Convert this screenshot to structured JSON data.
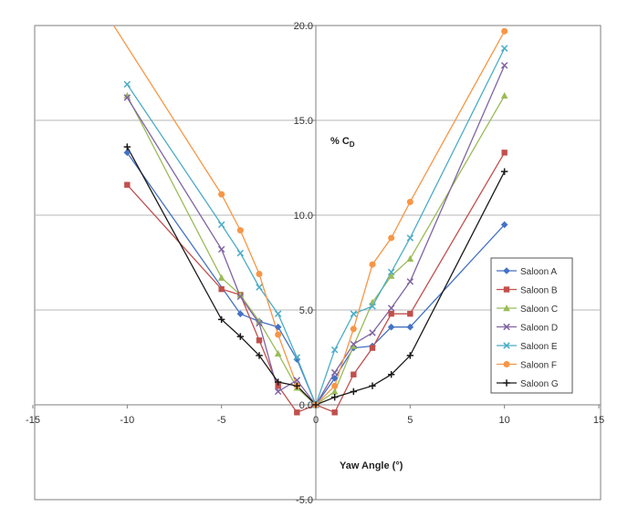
{
  "chart_data": {
    "type": "line",
    "title": "",
    "xlabel": "Yaw Angle (°)",
    "ylabel_prefix": "% C",
    "ylabel_sub": "D",
    "xlim": [
      -15,
      15
    ],
    "ylim": [
      -5,
      20
    ],
    "xticks": [
      -15,
      -10,
      -5,
      0,
      5,
      10,
      15
    ],
    "xtick_labels": [
      "-15",
      "-10",
      "-5",
      "0",
      "5",
      "10",
      "15"
    ],
    "yticks": [
      -5,
      0,
      5,
      10,
      15,
      20
    ],
    "ytick_labels": [
      "-5.0",
      "0.0",
      "5.0",
      "10.0",
      "15.0",
      "20.0"
    ],
    "grid": "horizontal",
    "legend_position": "right",
    "series": [
      {
        "name": "Saloon A",
        "color": "#4472c4",
        "marker": "diamond",
        "x": [
          -10,
          -4,
          -3,
          -2,
          -1,
          0,
          1,
          2,
          3,
          4,
          5,
          10
        ],
        "y": [
          13.3,
          4.8,
          4.4,
          4.1,
          2.4,
          0.0,
          1.4,
          3.0,
          3.1,
          4.1,
          4.1,
          9.5
        ]
      },
      {
        "name": "Saloon B",
        "color": "#c0504d",
        "marker": "square",
        "x": [
          -10,
          -5,
          -4,
          -3,
          -2,
          -1,
          0,
          1,
          2,
          3,
          4,
          5,
          10
        ],
        "y": [
          11.6,
          6.1,
          5.8,
          3.4,
          1.0,
          -0.4,
          0.0,
          -0.4,
          1.6,
          3.0,
          4.8,
          4.8,
          13.3
        ]
      },
      {
        "name": "Saloon C",
        "color": "#9bbb59",
        "marker": "triangle",
        "x": [
          -10,
          -5,
          -4,
          -3,
          -2,
          -1,
          0,
          1,
          2,
          3,
          4,
          5,
          10
        ],
        "y": [
          16.3,
          6.7,
          5.8,
          4.4,
          2.7,
          0.9,
          0.0,
          0.7,
          3.1,
          5.4,
          6.8,
          7.7,
          16.3
        ]
      },
      {
        "name": "Saloon D",
        "color": "#8064a2",
        "marker": "x",
        "x": [
          -10,
          -5,
          -4,
          -3,
          -2,
          -1,
          0,
          1,
          2,
          3,
          4,
          5,
          10
        ],
        "y": [
          16.2,
          8.2,
          5.7,
          4.3,
          0.7,
          1.3,
          0.0,
          1.7,
          3.2,
          3.8,
          5.1,
          6.5,
          17.9
        ]
      },
      {
        "name": "Saloon E",
        "color": "#4bacc6",
        "marker": "x",
        "x": [
          -10,
          -5,
          -4,
          -3,
          -2,
          -1,
          0,
          1,
          2,
          3,
          4,
          5,
          10
        ],
        "y": [
          16.9,
          9.5,
          8.0,
          6.2,
          4.8,
          2.5,
          0.0,
          2.9,
          4.8,
          5.2,
          7.0,
          8.8,
          18.8
        ]
      },
      {
        "name": "Saloon F",
        "color": "#f79646",
        "marker": "circle",
        "x": [
          -12,
          -5,
          -4,
          -3,
          -2,
          -1,
          0,
          1,
          2,
          3,
          4,
          5,
          10
        ],
        "y": [
          22.0,
          11.1,
          9.2,
          6.9,
          3.7,
          1.0,
          0.0,
          1.0,
          4.0,
          7.4,
          8.8,
          10.7,
          19.7
        ]
      },
      {
        "name": "Saloon G",
        "color": "#1a1a1a",
        "marker": "plus",
        "x": [
          -10,
          -5,
          -4,
          -3,
          -2,
          -1,
          0,
          1,
          2,
          3,
          4,
          5,
          10
        ],
        "y": [
          13.6,
          4.5,
          3.6,
          2.6,
          1.2,
          1.0,
          0.0,
          0.4,
          0.7,
          1.0,
          1.6,
          2.6,
          12.3
        ]
      }
    ]
  }
}
